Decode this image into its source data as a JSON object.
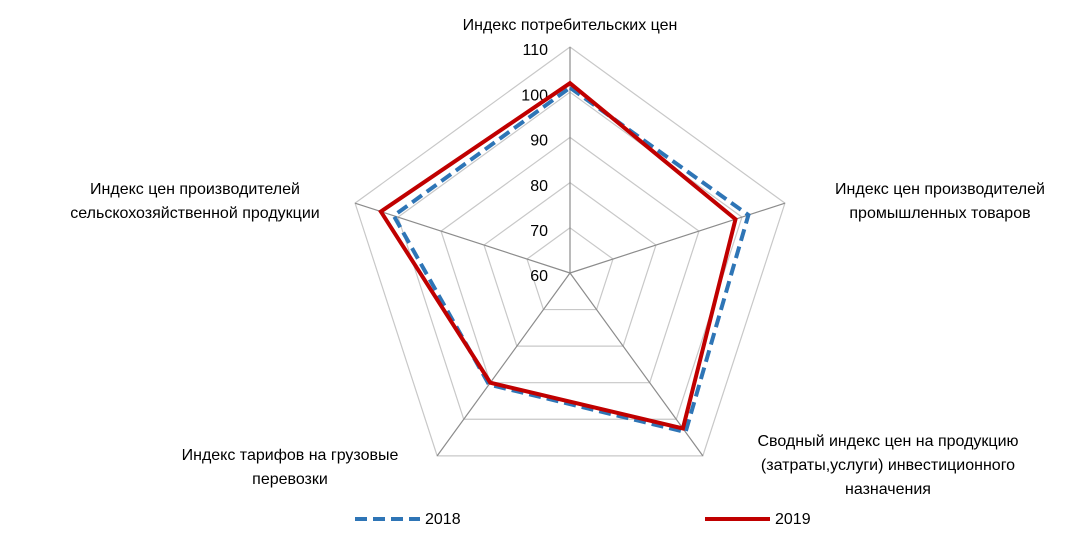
{
  "chart_data": {
    "type": "radar",
    "categories": [
      [
        "Индекс потребительских цен"
      ],
      [
        "Индекс цен производителей",
        "промышленных товаров"
      ],
      [
        "Сводный индекс цен на продукцию",
        "(затраты,услуги) инвестиционного",
        "назначения"
      ],
      [
        "Индекс тарифов на грузовые",
        "перевозки"
      ],
      [
        "Индекс цен производителей",
        "сельскохозяйственной продукции"
      ]
    ],
    "series": [
      {
        "name": "2018",
        "color": "#2e75b6",
        "dashed": true,
        "values": [
          101,
          101.5,
          103.5,
          90.5,
          101
        ]
      },
      {
        "name": "2019",
        "color": "#c00000",
        "dashed": false,
        "values": [
          102,
          98.5,
          102.5,
          90,
          104
        ]
      }
    ],
    "rlim": [
      60,
      110
    ],
    "rticks": [
      60,
      70,
      80,
      90,
      100,
      110
    ],
    "grid": true,
    "legend": "bottom"
  }
}
